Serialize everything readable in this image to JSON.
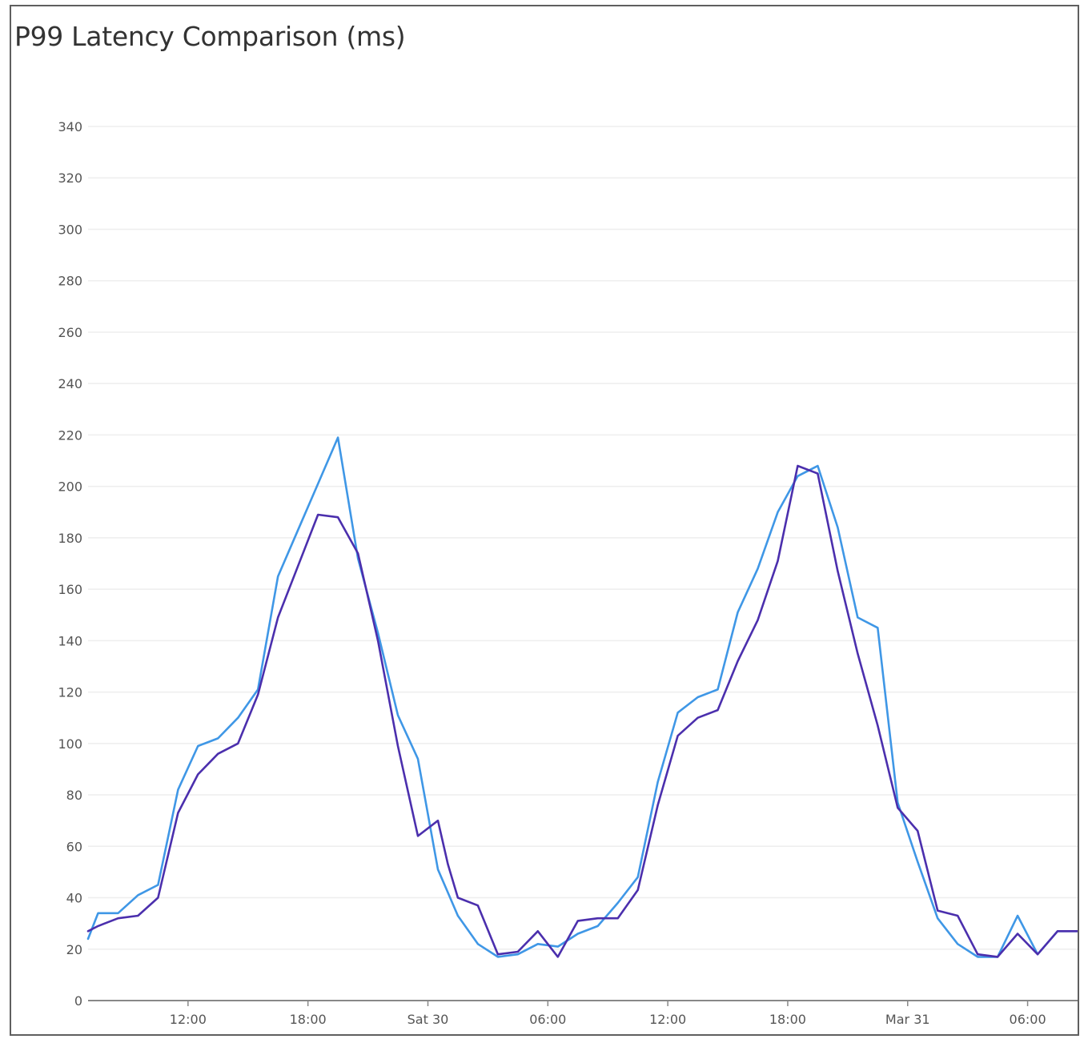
{
  "colors": {
    "series1": "#3f97e6",
    "series2": "#4b2fad",
    "grid": "#eeeeee",
    "axis": "#888888"
  },
  "chart_data": {
    "type": "line",
    "title": "P99 Latency Comparison (ms)",
    "xlabel": "",
    "ylabel": "",
    "ylim": [
      0,
      340
    ],
    "xlim": [
      "2024-03-29 07:00",
      "2024-03-31 08:30"
    ],
    "grid": true,
    "y_ticks": [
      0,
      20,
      40,
      60,
      80,
      100,
      120,
      140,
      160,
      180,
      200,
      220,
      240,
      260,
      280,
      300,
      320,
      340
    ],
    "x_ticks": [
      {
        "at": "2024-03-29 12:00",
        "label": "12:00"
      },
      {
        "at": "2024-03-29 18:00",
        "label": "18:00"
      },
      {
        "at": "2024-03-30 00:00",
        "label": "Sat 30"
      },
      {
        "at": "2024-03-30 06:00",
        "label": "06:00"
      },
      {
        "at": "2024-03-30 12:00",
        "label": "12:00"
      },
      {
        "at": "2024-03-30 18:00",
        "label": "18:00"
      },
      {
        "at": "2024-03-31 00:00",
        "label": "Mar 31"
      },
      {
        "at": "2024-03-31 06:00",
        "label": "06:00"
      }
    ],
    "x": [
      "2024-03-29 07:00",
      "2024-03-29 07:30",
      "2024-03-29 08:30",
      "2024-03-29 09:30",
      "2024-03-29 10:30",
      "2024-03-29 11:30",
      "2024-03-29 12:30",
      "2024-03-29 13:30",
      "2024-03-29 14:30",
      "2024-03-29 15:30",
      "2024-03-29 16:30",
      "2024-03-29 17:30",
      "2024-03-29 18:30",
      "2024-03-29 19:30",
      "2024-03-29 20:30",
      "2024-03-29 21:30",
      "2024-03-29 22:30",
      "2024-03-29 23:30",
      "2024-03-30 00:30",
      "2024-03-30 01:00",
      "2024-03-30 01:30",
      "2024-03-30 02:30",
      "2024-03-30 03:30",
      "2024-03-30 04:30",
      "2024-03-30 05:30",
      "2024-03-30 06:30",
      "2024-03-30 07:30",
      "2024-03-30 08:30",
      "2024-03-30 09:30",
      "2024-03-30 10:30",
      "2024-03-30 11:30",
      "2024-03-30 12:30",
      "2024-03-30 13:30",
      "2024-03-30 14:30",
      "2024-03-30 15:30",
      "2024-03-30 16:30",
      "2024-03-30 17:30",
      "2024-03-30 18:30",
      "2024-03-30 19:30",
      "2024-03-30 20:30",
      "2024-03-30 21:30",
      "2024-03-30 22:30",
      "2024-03-30 23:30",
      "2024-03-31 00:30",
      "2024-03-31 01:30",
      "2024-03-31 02:30",
      "2024-03-31 03:30",
      "2024-03-31 04:30",
      "2024-03-31 05:30",
      "2024-03-31 06:30",
      "2024-03-31 07:30",
      "2024-03-31 08:30"
    ],
    "series": [
      {
        "values": [
          24,
          34,
          34,
          41,
          45,
          82,
          99,
          102,
          110,
          121,
          165,
          183,
          201,
          219,
          172,
          143,
          111,
          94,
          51,
          42,
          33,
          22,
          17,
          18,
          22,
          21,
          26,
          29,
          38,
          48,
          85,
          112,
          118,
          121,
          151,
          168,
          190,
          204,
          208,
          184,
          149,
          145,
          77,
          54,
          32,
          22,
          17,
          17,
          33,
          18,
          27,
          27
        ]
      },
      {
        "values": [
          27,
          29,
          32,
          33,
          40,
          73,
          88,
          96,
          100,
          119,
          149,
          169,
          189,
          188,
          174,
          140,
          99,
          64,
          70,
          53,
          40,
          37,
          18,
          19,
          27,
          17,
          31,
          32,
          32,
          43,
          76,
          103,
          110,
          113,
          132,
          148,
          171,
          208,
          205,
          167,
          135,
          107,
          75,
          66,
          35,
          33,
          18,
          17,
          26,
          18,
          27,
          27
        ]
      }
    ]
  }
}
